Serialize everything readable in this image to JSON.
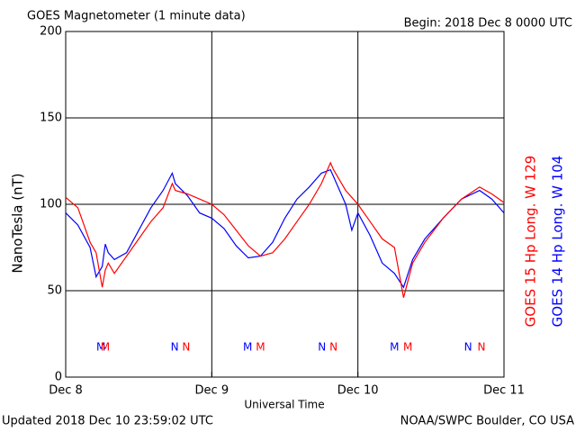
{
  "chart_data": {
    "type": "line",
    "title": "GOES Magnetometer (1 minute data)",
    "subtitle": "Begin:  2018 Dec 8 0000 UTC",
    "y_label": "NanoTesla (nT)",
    "x_label": "Universal Time",
    "footer_left": "Updated 2018 Dec 10 23:59:02 UTC",
    "footer_right": "NOAA/SWPC Boulder, CO USA",
    "grid": true,
    "xlim": [
      0,
      72
    ],
    "xticks": [
      {
        "value": 0,
        "label": "Dec 8"
      },
      {
        "value": 24,
        "label": "Dec 9"
      },
      {
        "value": 48,
        "label": "Dec 10"
      },
      {
        "value": 72,
        "label": "Dec 11"
      }
    ],
    "ylim": [
      0,
      200
    ],
    "yticks": [
      0,
      50,
      100,
      150,
      200
    ],
    "x": [
      0,
      2,
      4,
      5,
      6,
      6.5,
      7,
      8,
      10,
      12,
      14,
      16,
      17.5,
      18,
      20,
      22,
      24,
      26,
      28,
      30,
      32,
      34,
      36,
      38,
      40,
      42,
      43.5,
      44,
      46,
      47,
      48,
      50,
      52,
      54,
      55.5,
      57,
      59,
      62,
      65,
      68,
      70,
      72
    ],
    "series": [
      {
        "name": "GOES 15 Hp  Long. W 129",
        "color": "#ff0000",
        "values": [
          104,
          98,
          78,
          72,
          52,
          62,
          66,
          60,
          70,
          80,
          90,
          98,
          112,
          108,
          106,
          103,
          100,
          94,
          85,
          76,
          70,
          72,
          80,
          90,
          100,
          112,
          124,
          120,
          108,
          104,
          100,
          90,
          80,
          75,
          46,
          66,
          78,
          92,
          103,
          110,
          106,
          101
        ]
      },
      {
        "name": "GOES 14 Hp  Long. W 104",
        "color": "#0000ff",
        "values": [
          95,
          88,
          75,
          58,
          64,
          77,
          72,
          68,
          72,
          85,
          98,
          108,
          118,
          112,
          105,
          95,
          92,
          86,
          76,
          69,
          70,
          78,
          92,
          103,
          110,
          118,
          120,
          116,
          100,
          85,
          95,
          82,
          66,
          60,
          52,
          68,
          80,
          92,
          103,
          108,
          103,
          95
        ]
      }
    ],
    "annotations": [
      {
        "text": "M",
        "color": "#0000ff",
        "x": 5.8
      },
      {
        "text": "M",
        "color": "#ff0000",
        "x": 6.5
      },
      {
        "text": "N",
        "color": "#0000ff",
        "x": 17.9
      },
      {
        "text": "N",
        "color": "#ff0000",
        "x": 19.8
      },
      {
        "text": "M",
        "color": "#0000ff",
        "x": 29.9
      },
      {
        "text": "M",
        "color": "#ff0000",
        "x": 32
      },
      {
        "text": "N",
        "color": "#0000ff",
        "x": 42.1
      },
      {
        "text": "N",
        "color": "#ff0000",
        "x": 44
      },
      {
        "text": "M",
        "color": "#0000ff",
        "x": 54
      },
      {
        "text": "M",
        "color": "#ff0000",
        "x": 56.2
      },
      {
        "text": "N",
        "color": "#0000ff",
        "x": 66.1
      },
      {
        "text": "N",
        "color": "#ff0000",
        "x": 68.3
      }
    ]
  }
}
